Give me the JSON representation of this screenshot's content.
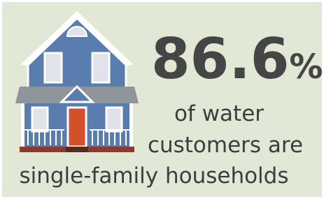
{
  "stat": {
    "value": "86.6",
    "unit": "%"
  },
  "lines": [
    "of water",
    "customers are",
    "single-family households"
  ]
}
